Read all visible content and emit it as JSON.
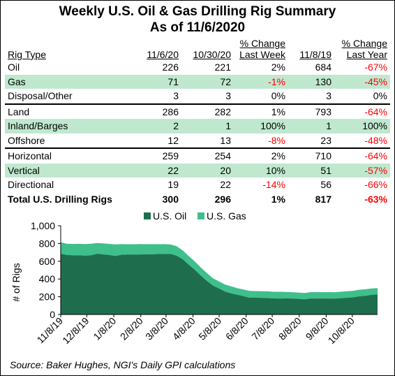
{
  "title_line1": "Weekly U.S. Oil & Gas Drilling Rig Summary",
  "title_line2": "As of 11/6/2020",
  "table": {
    "headers": [
      {
        "top": "",
        "bottom": "Rig Type"
      },
      {
        "top": "",
        "bottom": "11/6/20"
      },
      {
        "top": "",
        "bottom": "10/30/20"
      },
      {
        "top": "% Change",
        "bottom": "Last Week"
      },
      {
        "top": "",
        "bottom": "11/8/19"
      },
      {
        "top": "% Change",
        "bottom": "Last Year"
      }
    ],
    "rows": [
      {
        "cells": [
          "Oil",
          "226",
          "221",
          "2%",
          "684",
          "-67%"
        ],
        "shade": false,
        "topline": false,
        "total": false
      },
      {
        "cells": [
          "Gas",
          "71",
          "72",
          "-1%",
          "130",
          "-45%"
        ],
        "shade": true,
        "topline": false,
        "total": false
      },
      {
        "cells": [
          "Disposal/Other",
          "3",
          "3",
          "0%",
          "3",
          "0%"
        ],
        "shade": false,
        "topline": false,
        "total": false
      },
      {
        "cells": [
          "Land",
          "286",
          "282",
          "1%",
          "793",
          "-64%"
        ],
        "shade": false,
        "topline": true,
        "total": false
      },
      {
        "cells": [
          "Inland/Barges",
          "2",
          "1",
          "100%",
          "1",
          "100%"
        ],
        "shade": true,
        "topline": false,
        "total": false
      },
      {
        "cells": [
          "Offshore",
          "12",
          "13",
          "-8%",
          "23",
          "-48%"
        ],
        "shade": false,
        "topline": false,
        "total": false
      },
      {
        "cells": [
          "Horizontal",
          "259",
          "254",
          "2%",
          "710",
          "-64%"
        ],
        "shade": false,
        "topline": true,
        "total": false
      },
      {
        "cells": [
          "Vertical",
          "22",
          "20",
          "10%",
          "51",
          "-57%"
        ],
        "shade": true,
        "topline": false,
        "total": false
      },
      {
        "cells": [
          "Directional",
          "19",
          "22",
          "-14%",
          "56",
          "-66%"
        ],
        "shade": false,
        "topline": false,
        "total": false
      },
      {
        "cells": [
          "Total U.S. Drilling Rigs",
          "300",
          "296",
          "1%",
          "817",
          "-63%"
        ],
        "shade": false,
        "topline": false,
        "total": true
      }
    ]
  },
  "chart_data": {
    "type": "area",
    "stacked": true,
    "ylabel": "# of Rigs",
    "ylim": [
      0,
      1000
    ],
    "yticks": [
      "0",
      "200",
      "400",
      "600",
      "800",
      "1,000"
    ],
    "grid": false,
    "legend_position": "top",
    "x": [
      "2019-11-08",
      "2019-11-15",
      "2019-11-22",
      "2019-11-29",
      "2019-12-06",
      "2019-12-13",
      "2019-12-20",
      "2019-12-27",
      "2020-01-03",
      "2020-01-10",
      "2020-01-17",
      "2020-01-24",
      "2020-01-31",
      "2020-02-07",
      "2020-02-14",
      "2020-02-21",
      "2020-02-28",
      "2020-03-06",
      "2020-03-13",
      "2020-03-20",
      "2020-03-27",
      "2020-04-03",
      "2020-04-10",
      "2020-04-17",
      "2020-04-24",
      "2020-05-01",
      "2020-05-08",
      "2020-05-15",
      "2020-05-22",
      "2020-05-29",
      "2020-06-05",
      "2020-06-12",
      "2020-06-19",
      "2020-06-26",
      "2020-07-03",
      "2020-07-10",
      "2020-07-17",
      "2020-07-24",
      "2020-07-31",
      "2020-08-07",
      "2020-08-14",
      "2020-08-21",
      "2020-08-28",
      "2020-09-04",
      "2020-09-11",
      "2020-09-18",
      "2020-09-25",
      "2020-10-02",
      "2020-10-09",
      "2020-10-16",
      "2020-10-23",
      "2020-10-30",
      "2020-11-06"
    ],
    "xtick_labels": [
      "11/8/19",
      "12/8/19",
      "1/8/20",
      "2/8/20",
      "3/8/20",
      "4/8/20",
      "5/8/20",
      "6/8/20",
      "7/8/20",
      "8/8/20",
      "9/8/20",
      "10/8/20"
    ],
    "xtick_dates": [
      "2019-11-08",
      "2019-12-08",
      "2020-01-08",
      "2020-02-08",
      "2020-03-08",
      "2020-04-08",
      "2020-05-08",
      "2020-06-08",
      "2020-07-08",
      "2020-08-08",
      "2020-09-08",
      "2020-10-08"
    ],
    "series": [
      {
        "name": "U.S. Oil",
        "color": "#1e6e4e",
        "values": [
          684,
          671,
          667,
          668,
          663,
          667,
          685,
          677,
          670,
          659,
          673,
          676,
          676,
          676,
          678,
          678,
          682,
          682,
          683,
          664,
          624,
          562,
          504,
          438,
          378,
          325,
          292,
          258,
          237,
          222,
          206,
          189,
          189,
          188,
          185,
          181,
          180,
          181,
          180,
          176,
          172,
          180,
          180,
          180,
          180,
          179,
          183,
          189,
          193,
          205,
          211,
          221,
          226
        ]
      },
      {
        "name": "U.S. Gas",
        "color": "#3fbf8c",
        "values": [
          130,
          127,
          128,
          128,
          131,
          130,
          120,
          124,
          125,
          131,
          120,
          115,
          115,
          118,
          114,
          114,
          110,
          110,
          107,
          106,
          100,
          98,
          94,
          92,
          88,
          82,
          80,
          79,
          80,
          74,
          76,
          77,
          75,
          75,
          76,
          75,
          76,
          73,
          71,
          71,
          70,
          72,
          72,
          72,
          73,
          72,
          74,
          73,
          74,
          74,
          73,
          72,
          71
        ]
      }
    ]
  },
  "source": "Source: Baker Hughes, NGI's Daily GPI calculations"
}
